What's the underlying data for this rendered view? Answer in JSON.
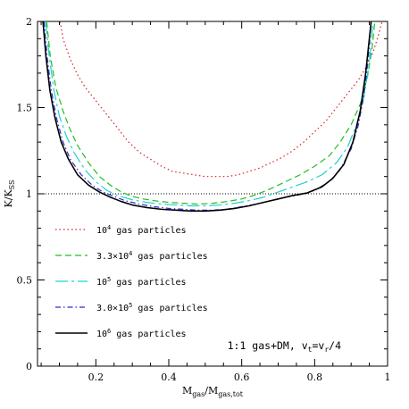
{
  "chart_data": {
    "type": "line",
    "xlabel_main": "M",
    "xlabel_sub1": "gas",
    "xlabel_mid": "/M",
    "xlabel_sub2": "gas,tot",
    "ylabel_main": "K/K",
    "ylabel_sub": "SS",
    "xlim": [
      0.04,
      1.0
    ],
    "ylim": [
      0,
      2
    ],
    "x_ticks": [
      0.2,
      0.4,
      0.6,
      0.8,
      1
    ],
    "x_tick_labels": [
      "0.2",
      "0.4",
      "0.6",
      "0.8",
      "1"
    ],
    "y_ticks": [
      0,
      0.5,
      1,
      1.5,
      2
    ],
    "y_tick_labels": [
      "0",
      "0.5",
      "1",
      "1.5",
      "2"
    ],
    "reference_line": {
      "y": 1,
      "style": "dotted",
      "color": "#000000"
    },
    "annotation": {
      "text": "1:1 gas+DM, v",
      "sub1": "t",
      "mid": "=v",
      "sub2": "r",
      "tail": "/4"
    },
    "legend_placement": "lower-left",
    "series": [
      {
        "legend_base": "10",
        "legend_exp": "4",
        "legend_tail": " gas particles",
        "color": "#d62020",
        "dash": "1.5,3",
        "width": 1.2,
        "points": [
          [
            0.102,
            2.0
          ],
          [
            0.11,
            1.9
          ],
          [
            0.13,
            1.78
          ],
          [
            0.15,
            1.69
          ],
          [
            0.17,
            1.62
          ],
          [
            0.2,
            1.54
          ],
          [
            0.23,
            1.46
          ],
          [
            0.26,
            1.38
          ],
          [
            0.29,
            1.3
          ],
          [
            0.32,
            1.24
          ],
          [
            0.35,
            1.2
          ],
          [
            0.38,
            1.16
          ],
          [
            0.41,
            1.13
          ],
          [
            0.44,
            1.12
          ],
          [
            0.47,
            1.11
          ],
          [
            0.5,
            1.1
          ],
          [
            0.53,
            1.1
          ],
          [
            0.56,
            1.1
          ],
          [
            0.59,
            1.11
          ],
          [
            0.62,
            1.13
          ],
          [
            0.65,
            1.15
          ],
          [
            0.68,
            1.18
          ],
          [
            0.71,
            1.21
          ],
          [
            0.74,
            1.25
          ],
          [
            0.77,
            1.3
          ],
          [
            0.8,
            1.36
          ],
          [
            0.83,
            1.42
          ],
          [
            0.86,
            1.5
          ],
          [
            0.89,
            1.58
          ],
          [
            0.92,
            1.66
          ],
          [
            0.94,
            1.73
          ],
          [
            0.96,
            1.82
          ],
          [
            0.975,
            1.92
          ],
          [
            0.985,
            2.0
          ]
        ]
      },
      {
        "legend_base": "3.3×10",
        "legend_exp": "4",
        "legend_tail": " gas particles",
        "color": "#1fbf1f",
        "dash": "7,4",
        "width": 1.2,
        "points": [
          [
            0.065,
            2.0
          ],
          [
            0.075,
            1.8
          ],
          [
            0.09,
            1.62
          ],
          [
            0.11,
            1.48
          ],
          [
            0.13,
            1.37
          ],
          [
            0.15,
            1.28
          ],
          [
            0.18,
            1.18
          ],
          [
            0.21,
            1.1
          ],
          [
            0.24,
            1.05
          ],
          [
            0.27,
            1.01
          ],
          [
            0.3,
            0.985
          ],
          [
            0.33,
            0.97
          ],
          [
            0.36,
            0.96
          ],
          [
            0.4,
            0.95
          ],
          [
            0.44,
            0.945
          ],
          [
            0.48,
            0.94
          ],
          [
            0.52,
            0.945
          ],
          [
            0.56,
            0.955
          ],
          [
            0.6,
            0.97
          ],
          [
            0.64,
            0.995
          ],
          [
            0.68,
            1.03
          ],
          [
            0.72,
            1.07
          ],
          [
            0.76,
            1.11
          ],
          [
            0.8,
            1.16
          ],
          [
            0.84,
            1.22
          ],
          [
            0.87,
            1.3
          ],
          [
            0.9,
            1.4
          ],
          [
            0.925,
            1.52
          ],
          [
            0.945,
            1.68
          ],
          [
            0.958,
            1.85
          ],
          [
            0.965,
            2.0
          ]
        ]
      },
      {
        "legend_base": "10",
        "legend_exp": "5",
        "legend_tail": " gas particles",
        "color": "#20d0d0",
        "dash": "14,4,3,4",
        "width": 1.2,
        "points": [
          [
            0.062,
            2.0
          ],
          [
            0.072,
            1.8
          ],
          [
            0.085,
            1.6
          ],
          [
            0.1,
            1.45
          ],
          [
            0.12,
            1.33
          ],
          [
            0.14,
            1.24
          ],
          [
            0.17,
            1.14
          ],
          [
            0.2,
            1.07
          ],
          [
            0.23,
            1.02
          ],
          [
            0.26,
            0.99
          ],
          [
            0.3,
            0.965
          ],
          [
            0.34,
            0.95
          ],
          [
            0.38,
            0.94
          ],
          [
            0.42,
            0.935
          ],
          [
            0.46,
            0.93
          ],
          [
            0.5,
            0.93
          ],
          [
            0.54,
            0.935
          ],
          [
            0.58,
            0.945
          ],
          [
            0.62,
            0.96
          ],
          [
            0.66,
            0.98
          ],
          [
            0.7,
            1.01
          ],
          [
            0.74,
            1.04
          ],
          [
            0.78,
            1.07
          ],
          [
            0.82,
            1.11
          ],
          [
            0.86,
            1.18
          ],
          [
            0.89,
            1.27
          ],
          [
            0.915,
            1.4
          ],
          [
            0.935,
            1.56
          ],
          [
            0.95,
            1.76
          ],
          [
            0.96,
            2.0
          ]
        ]
      },
      {
        "legend_base": "3.0×10",
        "legend_exp": "5",
        "legend_tail": " gas particles",
        "color": "#2a2ad0",
        "dash": "6,3,1.5,3",
        "width": 1.2,
        "points": [
          [
            0.058,
            2.0
          ],
          [
            0.066,
            1.8
          ],
          [
            0.078,
            1.6
          ],
          [
            0.092,
            1.44
          ],
          [
            0.11,
            1.3
          ],
          [
            0.13,
            1.2
          ],
          [
            0.16,
            1.11
          ],
          [
            0.19,
            1.05
          ],
          [
            0.22,
            1.01
          ],
          [
            0.25,
            0.985
          ],
          [
            0.28,
            0.96
          ],
          [
            0.32,
            0.94
          ],
          [
            0.36,
            0.925
          ],
          [
            0.4,
            0.915
          ],
          [
            0.44,
            0.91
          ],
          [
            0.48,
            0.905
          ],
          [
            0.52,
            0.905
          ],
          [
            0.56,
            0.91
          ],
          [
            0.6,
            0.925
          ],
          [
            0.64,
            0.94
          ],
          [
            0.68,
            0.96
          ],
          [
            0.72,
            0.98
          ],
          [
            0.76,
            0.995
          ],
          [
            0.8,
            1.02
          ],
          [
            0.84,
            1.07
          ],
          [
            0.87,
            1.14
          ],
          [
            0.9,
            1.26
          ],
          [
            0.92,
            1.4
          ],
          [
            0.935,
            1.57
          ],
          [
            0.947,
            1.78
          ],
          [
            0.955,
            2.0
          ]
        ]
      },
      {
        "legend_base": "10",
        "legend_exp": "6",
        "legend_tail": " gas particles",
        "color": "#000000",
        "dash": "",
        "width": 1.6,
        "points": [
          [
            0.055,
            2.0
          ],
          [
            0.063,
            1.8
          ],
          [
            0.074,
            1.6
          ],
          [
            0.088,
            1.44
          ],
          [
            0.105,
            1.3
          ],
          [
            0.125,
            1.2
          ],
          [
            0.15,
            1.11
          ],
          [
            0.18,
            1.05
          ],
          [
            0.21,
            1.01
          ],
          [
            0.24,
            0.98
          ],
          [
            0.27,
            0.955
          ],
          [
            0.3,
            0.935
          ],
          [
            0.34,
            0.92
          ],
          [
            0.38,
            0.91
          ],
          [
            0.42,
            0.905
          ],
          [
            0.46,
            0.9
          ],
          [
            0.5,
            0.9
          ],
          [
            0.54,
            0.905
          ],
          [
            0.58,
            0.915
          ],
          [
            0.62,
            0.93
          ],
          [
            0.66,
            0.95
          ],
          [
            0.7,
            0.97
          ],
          [
            0.74,
            0.99
          ],
          [
            0.78,
            1.005
          ],
          [
            0.82,
            1.04
          ],
          [
            0.85,
            1.09
          ],
          [
            0.88,
            1.17
          ],
          [
            0.905,
            1.3
          ],
          [
            0.925,
            1.48
          ],
          [
            0.94,
            1.7
          ],
          [
            0.95,
            1.9
          ],
          [
            0.955,
            2.0
          ]
        ]
      }
    ]
  }
}
